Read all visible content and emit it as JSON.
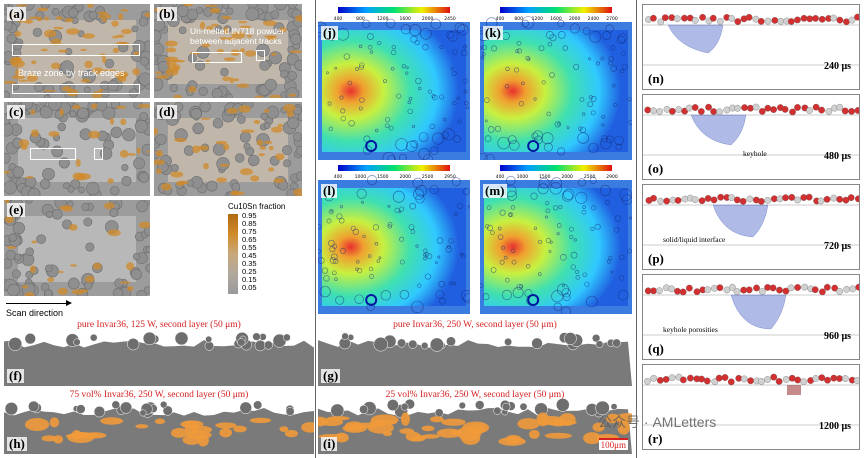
{
  "left": {
    "labels": {
      "a": "(a)",
      "b": "(b)",
      "c": "(c)",
      "d": "(d)",
      "e": "(e)"
    },
    "annotations": {
      "braze_zone": "Braze zone by track edges",
      "unmelted": "Un-melted IN718 powder between adjacent tracks",
      "scan_direction": "Scan direction"
    },
    "legend": {
      "title": "Cu10Sn fraction",
      "ticks": [
        "0.95",
        "0.85",
        "0.75",
        "0.65",
        "0.55",
        "0.45",
        "0.35",
        "0.25",
        "0.15",
        "0.05"
      ]
    }
  },
  "middle": {
    "labels": {
      "j": "(j)",
      "k": "(k)",
      "l": "(l)",
      "m": "(m)"
    },
    "colorbars": {
      "j": [
        "400",
        "800",
        "1200",
        "1600",
        "2000",
        "2450"
      ],
      "k": [
        "400",
        "800",
        "1200",
        "1600",
        "2000",
        "2400",
        "2700"
      ],
      "l": [
        "400",
        "1000",
        "1500",
        "2000",
        "2500",
        "2950"
      ],
      "m": [
        "400",
        "1000",
        "1500",
        "2000",
        "2500",
        "2900"
      ]
    }
  },
  "right": {
    "labels": {
      "n": "(n)",
      "o": "(o)",
      "p": "(p)",
      "q": "(q)",
      "r": "(r)"
    },
    "times": {
      "n": "240 μs",
      "o": "480 μs",
      "p": "720 μs",
      "q": "960 μs",
      "r": "1200 μs"
    },
    "annotations": {
      "keyhole": "keyhole",
      "interface": "solid/liquid interface",
      "porosities": "keyhole porosities"
    }
  },
  "bottom": {
    "labels": {
      "f": "(f)",
      "g": "(g)",
      "h": "(h)",
      "i": "(i)"
    },
    "titles": {
      "g": "pure Invar36, 250 W, second layer (50 μm)",
      "f": "pure Invar36, 125 W, second layer (50 μm)",
      "h": "75 vol% Invar36, 250 W, second layer (50 μm)",
      "i": "25 vol% Invar36, 250 W, second layer (50 μm)"
    },
    "scalebar": "100μm"
  },
  "watermark": "公众号 · AMLetters",
  "colors": {
    "powder": "#9a9a9a",
    "braze": "#d08a2a",
    "melt": "#c8c8c8",
    "label_red": "#d62020"
  }
}
